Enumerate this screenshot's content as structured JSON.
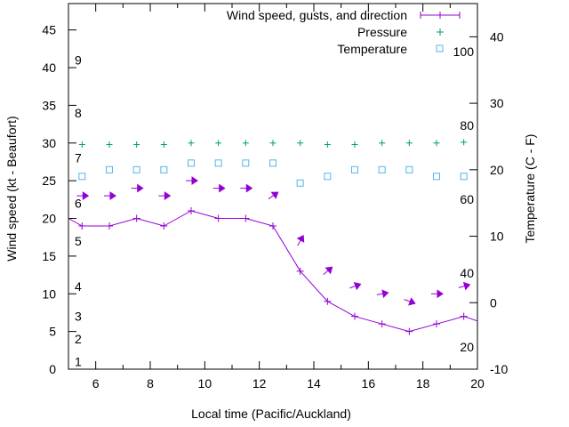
{
  "chart_data": {
    "type": "line",
    "xlabel": "Local time (Pacific/Auckland)",
    "ylabel": "Wind speed (kt - Beaufort)",
    "y2label": "Temperature (C - F)",
    "xlim": [
      5,
      20
    ],
    "ylim": [
      0,
      48.5
    ],
    "y2lim": [
      -10,
      45
    ],
    "x_ticks": [
      6,
      8,
      10,
      12,
      14,
      16,
      18,
      20
    ],
    "y_ticks": [
      0,
      5,
      10,
      15,
      20,
      25,
      30,
      35,
      40,
      45
    ],
    "y2_ticks": [
      -10,
      0,
      10,
      20,
      30,
      40
    ],
    "beaufort_labels": [
      {
        "label": "1",
        "kt": 1
      },
      {
        "label": "2",
        "kt": 4
      },
      {
        "label": "3",
        "kt": 7
      },
      {
        "label": "4",
        "kt": 11
      },
      {
        "label": "5",
        "kt": 17
      },
      {
        "label": "6",
        "kt": 22
      },
      {
        "label": "7",
        "kt": 28
      },
      {
        "label": "8",
        "kt": 34
      },
      {
        "label": "9",
        "kt": 41
      }
    ],
    "fahrenheit_labels": [
      {
        "label": "20",
        "f": 20
      },
      {
        "label": "40",
        "f": 40
      },
      {
        "label": "60",
        "f": 60
      },
      {
        "label": "80",
        "f": 80
      },
      {
        "label": "100",
        "f": 100
      }
    ],
    "legend_position": "top-right",
    "colors": {
      "wind": "#9400d3",
      "pressure": "#009e73",
      "temperature": "#56b4e9"
    },
    "series": [
      {
        "name": "Wind speed, gusts, and direction",
        "kind": "line",
        "x": [
          5,
          5.5,
          6.5,
          7.5,
          8.5,
          9.5,
          10.5,
          11.5,
          12.5,
          13.5,
          14.5,
          15.5,
          16.5,
          17.5,
          18.5,
          19.5,
          20
        ],
        "y": [
          20,
          19,
          19,
          20,
          19,
          21,
          20,
          20,
          19,
          13,
          9,
          7,
          6,
          5,
          6,
          7,
          6.4
        ]
      },
      {
        "name": "gust-direction-arrows",
        "kind": "arrows",
        "x": [
          5.5,
          6.5,
          7.5,
          8.5,
          9.5,
          10.5,
          11.5,
          12.5,
          13.5,
          14.5,
          15.5,
          16.5,
          17.5,
          18.5,
          19.5
        ],
        "y": [
          23,
          23,
          24,
          23,
          25,
          24,
          24,
          23,
          17,
          13,
          11,
          10,
          9,
          10,
          11
        ],
        "angle_deg": [
          0,
          0,
          0,
          0,
          0,
          0,
          0,
          -35,
          -60,
          -40,
          -20,
          -10,
          20,
          0,
          -15
        ]
      },
      {
        "name": "Pressure",
        "kind": "points",
        "x": [
          5.5,
          6.5,
          7.5,
          8.5,
          9.5,
          10.5,
          11.5,
          12.5,
          13.5,
          14.5,
          15.5,
          16.5,
          17.5,
          18.5,
          19.5
        ],
        "y": [
          29.8,
          29.8,
          29.8,
          29.8,
          30.0,
          30.0,
          30.0,
          30.0,
          30.0,
          29.8,
          29.8,
          30.0,
          30.0,
          30.0,
          30.1
        ]
      },
      {
        "name": "Temperature",
        "kind": "points",
        "axis": "y2",
        "x": [
          5.5,
          6.5,
          7.5,
          8.5,
          9.5,
          10.5,
          11.5,
          12.5,
          13.5,
          14.5,
          15.5,
          16.5,
          17.5,
          18.5,
          19.5
        ],
        "y": [
          19,
          20,
          20,
          20,
          21,
          21,
          21,
          21,
          18,
          19,
          20,
          20,
          20,
          19,
          19
        ]
      }
    ]
  }
}
